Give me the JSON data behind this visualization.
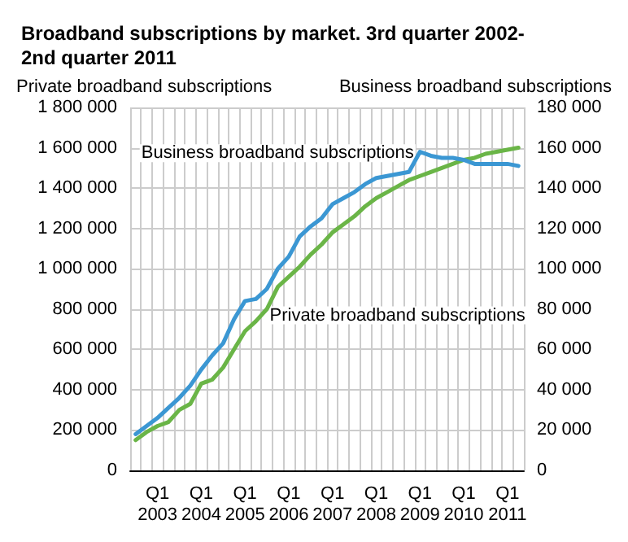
{
  "chart_data": {
    "type": "line",
    "title": "Broadband subscriptions by market. 3rd quarter 2002-\n2nd quarter 2011",
    "ylabel": "Private broadband subscriptions",
    "y2label": "Business broadband subscriptions",
    "categories": [
      null,
      null,
      "Q1\n2003",
      null,
      null,
      null,
      "Q1\n2004",
      null,
      null,
      null,
      "Q1\n2005",
      null,
      null,
      null,
      "Q1\n2006",
      null,
      null,
      null,
      "Q1\n2007",
      null,
      null,
      null,
      "Q1\n2008",
      null,
      null,
      null,
      "Q1\n2009",
      null,
      null,
      null,
      "Q1\n2010",
      null,
      null,
      null,
      "Q1\n2011",
      null
    ],
    "series": [
      {
        "name": "Private broadband subscriptions",
        "color": "#6ab547",
        "values": [
          150000,
          190000,
          220000,
          240000,
          300000,
          330000,
          430000,
          450000,
          510000,
          600000,
          690000,
          740000,
          800000,
          910000,
          960000,
          1010000,
          1070000,
          1120000,
          1180000,
          1220000,
          1260000,
          1310000,
          1350000,
          1380000,
          1410000,
          1440000,
          1460000,
          1480000,
          1500000,
          1520000,
          1540000,
          1550000,
          1570000,
          1580000,
          1590000,
          1600000
        ]
      },
      {
        "name": "Business broadband subscriptions",
        "color": "#3b97d3",
        "axis": "y2",
        "values": [
          18000,
          22000,
          26000,
          31000,
          36000,
          42000,
          50000,
          57000,
          63000,
          75000,
          84000,
          85000,
          90000,
          100000,
          106000,
          116000,
          121000,
          125000,
          132000,
          135000,
          138000,
          142000,
          145000,
          146000,
          147000,
          148000,
          158000,
          156000,
          155000,
          155000,
          154000,
          152000,
          152000,
          152000,
          152000,
          151000
        ]
      }
    ],
    "ylim": [
      0,
      1800000
    ],
    "yticks": [
      0,
      {
        "value": 200000,
        "label": "200 000"
      },
      {
        "value": 400000,
        "label": "400 000"
      },
      {
        "value": 600000,
        "label": "600 000"
      },
      {
        "value": 800000,
        "label": "800 000"
      },
      {
        "value": 1000000,
        "label": "1 000 000"
      },
      {
        "value": 1200000,
        "label": "1 200 000"
      },
      {
        "value": 1400000,
        "label": "1 400 000"
      },
      {
        "value": 1600000,
        "label": "1 600 000"
      },
      {
        "value": 1800000,
        "label": "1 800 000"
      }
    ],
    "y2lim": [
      0,
      180000
    ],
    "y2ticks": [
      0,
      {
        "value": 20000,
        "label": "20 000"
      },
      {
        "value": 40000,
        "label": "40 000"
      },
      {
        "value": 60000,
        "label": "60 000"
      },
      {
        "value": 80000,
        "label": "80 000"
      },
      {
        "value": 100000,
        "label": "100 000"
      },
      {
        "value": 120000,
        "label": "120 000"
      },
      {
        "value": 140000,
        "label": "140 000"
      },
      {
        "value": 160000,
        "label": "160 000"
      },
      {
        "value": 180000,
        "label": "180 000"
      }
    ],
    "grid": true,
    "legend": false,
    "marker": "none",
    "line_style": "solid"
  }
}
